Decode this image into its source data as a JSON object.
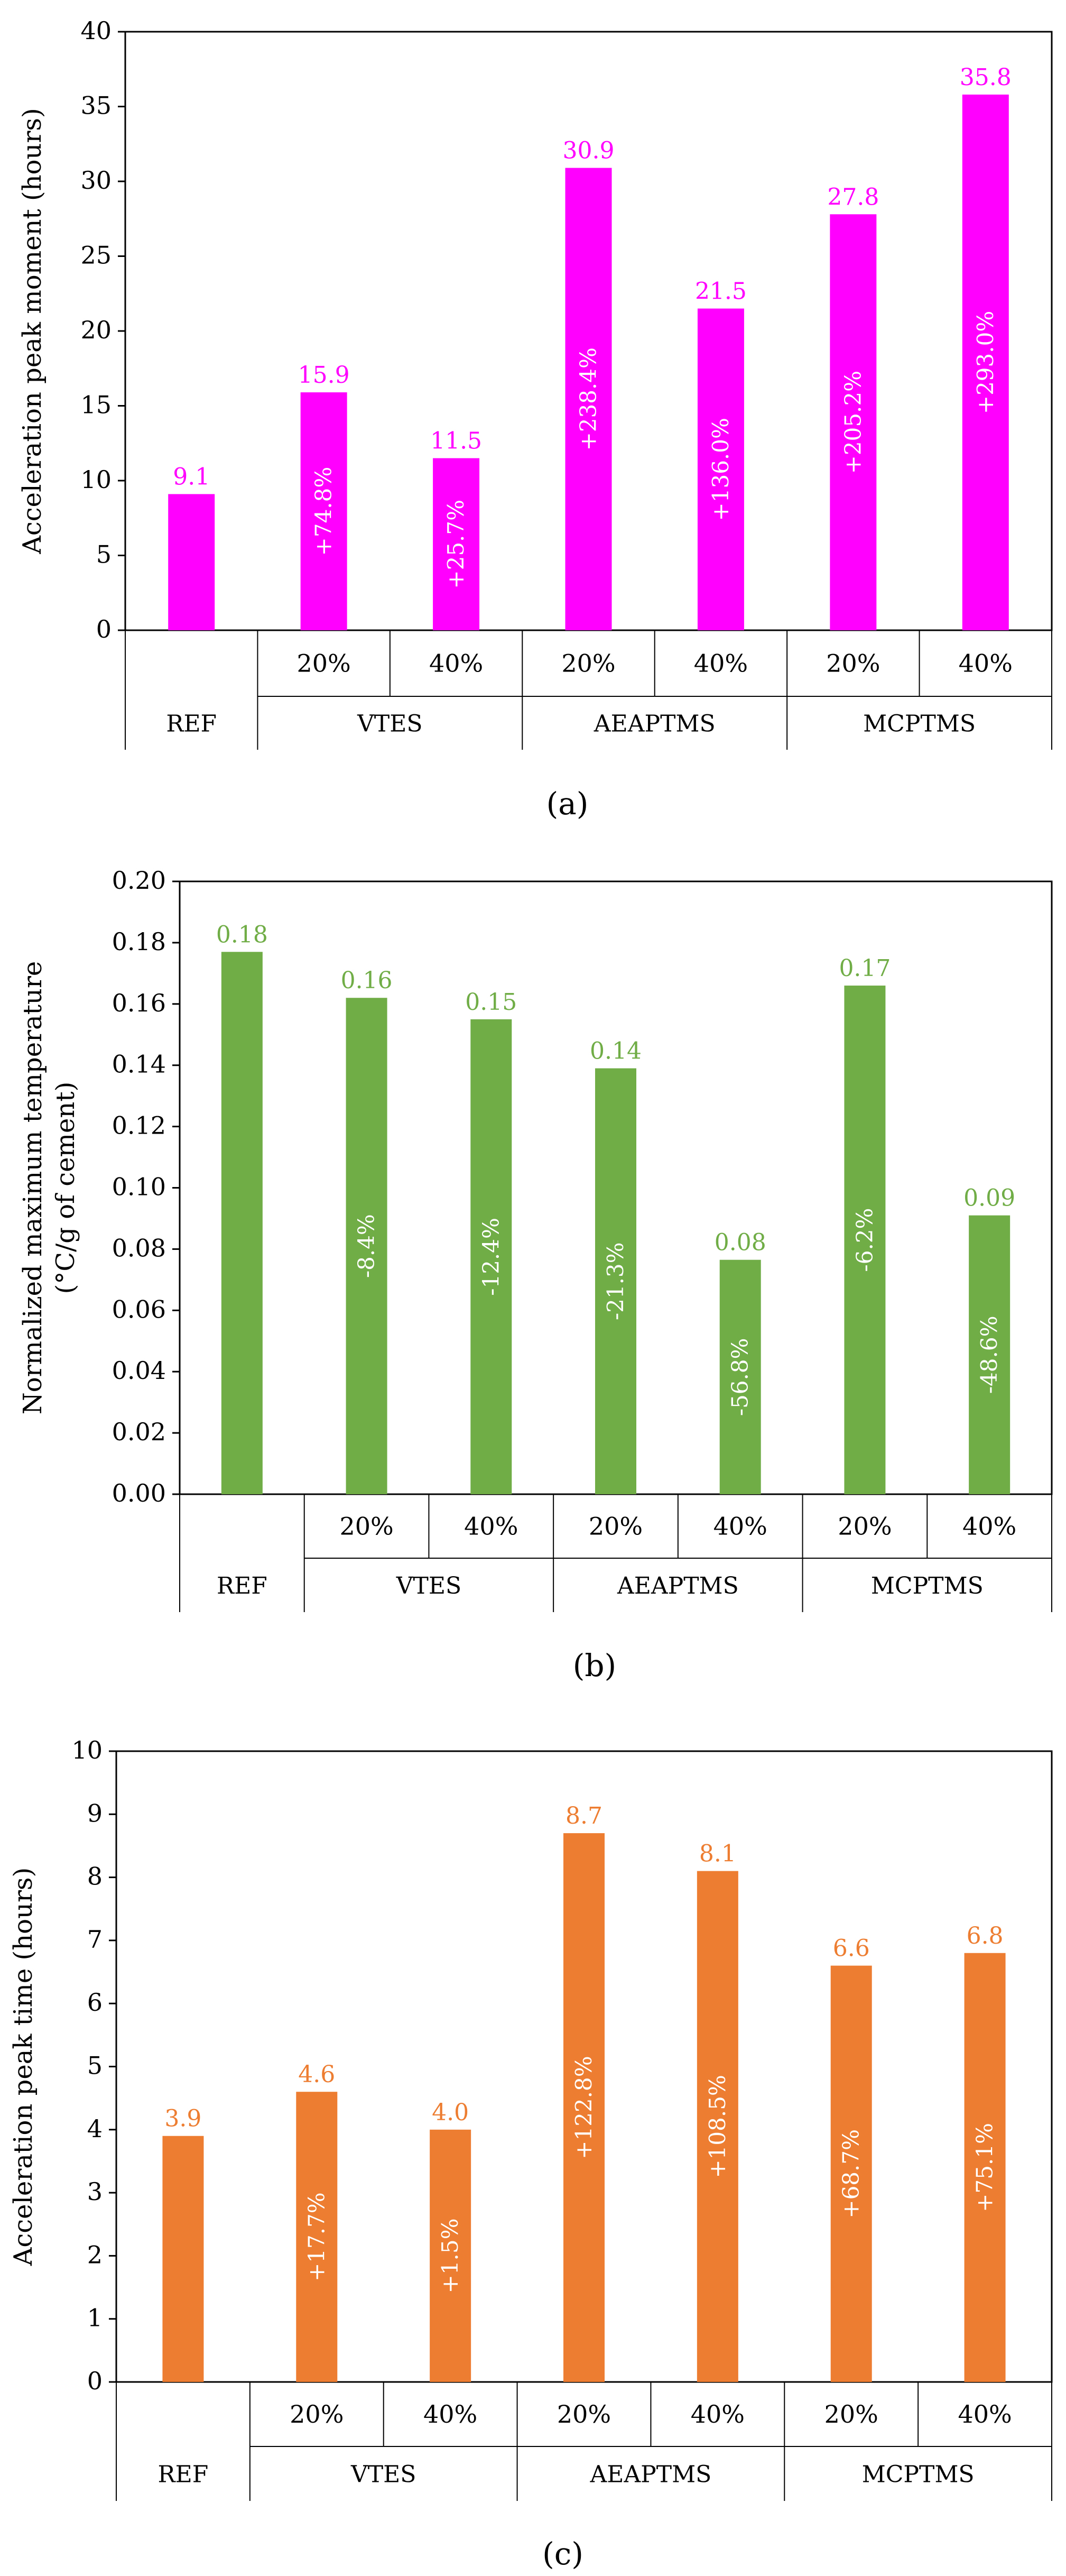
{
  "chart_data": [
    {
      "type": "bar",
      "caption": "(a)",
      "ylabel": "Acceleration peak moment (hours)",
      "ylabel2": "",
      "ylim": [
        0,
        40
      ],
      "ytick_step": 5,
      "ytick_decimals": 0,
      "yticks": [
        "0",
        "5",
        "10",
        "15",
        "20",
        "25",
        "30",
        "35",
        "40"
      ],
      "bar_color": "#FF00FF",
      "label_color": "#FF00FF",
      "categories": [
        {
          "group": "REF",
          "sub": "",
          "value": 9.1,
          "value_label": "9.1",
          "change": ""
        },
        {
          "group": "VTES",
          "sub": "20%",
          "value": 15.9,
          "value_label": "15.9",
          "change": "+74.8%"
        },
        {
          "group": "VTES",
          "sub": "40%",
          "value": 11.5,
          "value_label": "11.5",
          "change": "+25.7%"
        },
        {
          "group": "AEAPTMS",
          "sub": "20%",
          "value": 30.9,
          "value_label": "30.9",
          "change": "+238.4%"
        },
        {
          "group": "AEAPTMS",
          "sub": "40%",
          "value": 21.5,
          "value_label": "21.5",
          "change": "+136.0%"
        },
        {
          "group": "MCPTMS",
          "sub": "20%",
          "value": 27.8,
          "value_label": "27.8",
          "change": "+205.2%"
        },
        {
          "group": "MCPTMS",
          "sub": "40%",
          "value": 35.8,
          "value_label": "35.8",
          "change": "+293.0%"
        }
      ],
      "groups": [
        "REF",
        "VTES",
        "AEAPTMS",
        "MCPTMS"
      ]
    },
    {
      "type": "bar",
      "caption": "(b)",
      "ylabel": "Normalized maximum temperature",
      "ylabel2": "(°C/g of cement)",
      "ylim": [
        0,
        0.2
      ],
      "ytick_step": 0.02,
      "ytick_decimals": 2,
      "yticks": [
        "0.00",
        "0.02",
        "0.04",
        "0.06",
        "0.08",
        "0.10",
        "0.12",
        "0.14",
        "0.16",
        "0.18",
        "0.20"
      ],
      "bar_color": "#70AD47",
      "label_color": "#70AD47",
      "categories": [
        {
          "group": "REF",
          "sub": "",
          "value": 0.177,
          "value_label": "0.18",
          "change": ""
        },
        {
          "group": "VTES",
          "sub": "20%",
          "value": 0.162,
          "value_label": "0.16",
          "change": "-8.4%"
        },
        {
          "group": "VTES",
          "sub": "40%",
          "value": 0.155,
          "value_label": "0.15",
          "change": "-12.4%"
        },
        {
          "group": "AEAPTMS",
          "sub": "20%",
          "value": 0.139,
          "value_label": "0.14",
          "change": "-21.3%"
        },
        {
          "group": "AEAPTMS",
          "sub": "40%",
          "value": 0.0765,
          "value_label": "0.08",
          "change": "-56.8%"
        },
        {
          "group": "MCPTMS",
          "sub": "20%",
          "value": 0.166,
          "value_label": "0.17",
          "change": "-6.2%"
        },
        {
          "group": "MCPTMS",
          "sub": "40%",
          "value": 0.091,
          "value_label": "0.09",
          "change": "-48.6%"
        }
      ],
      "groups": [
        "REF",
        "VTES",
        "AEAPTMS",
        "MCPTMS"
      ]
    },
    {
      "type": "bar",
      "caption": "(c)",
      "ylabel": "Acceleration peak time (hours)",
      "ylabel2": "",
      "ylim": [
        0,
        10
      ],
      "ytick_step": 1,
      "ytick_decimals": 0,
      "yticks": [
        "0",
        "1",
        "2",
        "3",
        "4",
        "5",
        "6",
        "7",
        "8",
        "9",
        "10"
      ],
      "bar_color": "#ED7D31",
      "label_color": "#ED7D31",
      "categories": [
        {
          "group": "REF",
          "sub": "",
          "value": 3.9,
          "value_label": "3.9",
          "change": ""
        },
        {
          "group": "VTES",
          "sub": "20%",
          "value": 4.6,
          "value_label": "4.6",
          "change": "+17.7%"
        },
        {
          "group": "VTES",
          "sub": "40%",
          "value": 4.0,
          "value_label": "4.0",
          "change": "+1.5%"
        },
        {
          "group": "AEAPTMS",
          "sub": "20%",
          "value": 8.7,
          "value_label": "8.7",
          "change": "+122.8%"
        },
        {
          "group": "AEAPTMS",
          "sub": "40%",
          "value": 8.1,
          "value_label": "8.1",
          "change": "+108.5%"
        },
        {
          "group": "MCPTMS",
          "sub": "20%",
          "value": 6.6,
          "value_label": "6.6",
          "change": "+68.7%"
        },
        {
          "group": "MCPTMS",
          "sub": "40%",
          "value": 6.8,
          "value_label": "6.8",
          "change": "+75.1%"
        }
      ],
      "groups": [
        "REF",
        "VTES",
        "AEAPTMS",
        "MCPTMS"
      ]
    }
  ]
}
